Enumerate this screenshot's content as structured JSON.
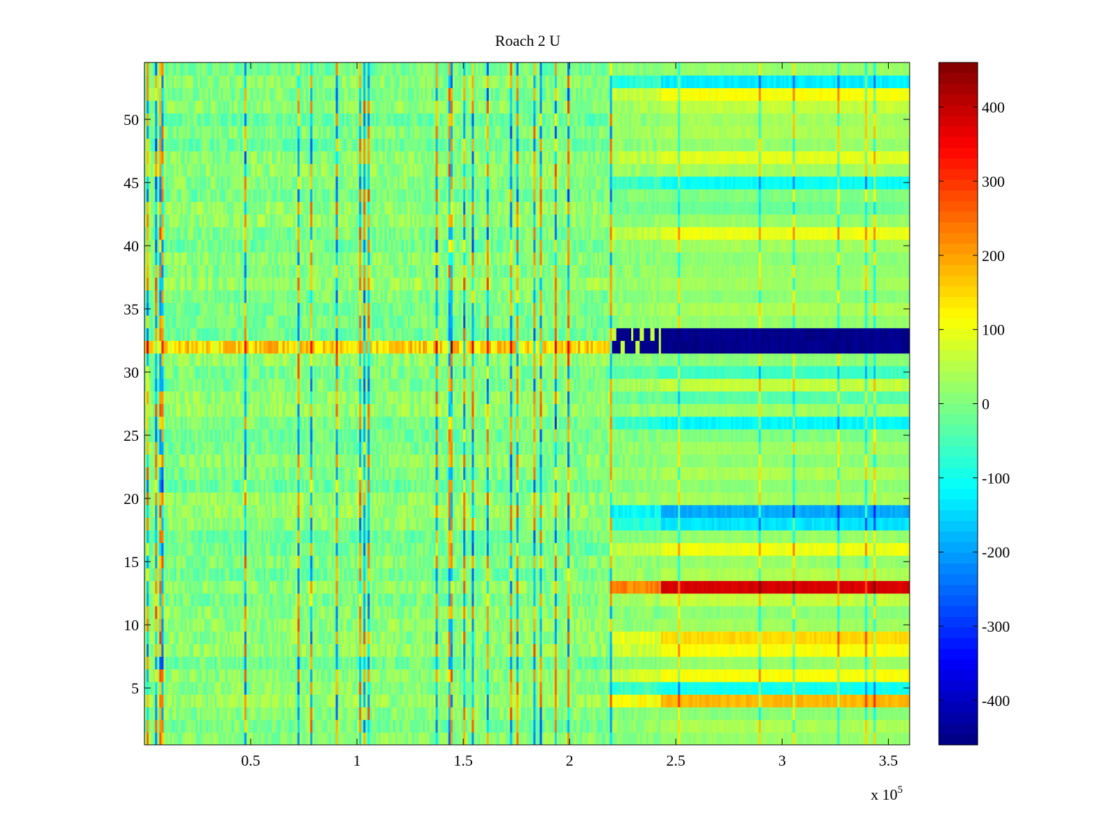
{
  "chart_data": {
    "type": "heatmap",
    "title": "Roach 2 U",
    "xlabel": "",
    "ylabel": "",
    "x_exponent_label": "x 10",
    "x_exponent_power": "5",
    "xlim": [
      0,
      3.6
    ],
    "ylim": [
      0.5,
      54.5
    ],
    "rows": 54,
    "columns": 360,
    "x_ticks": [
      0.5,
      1,
      1.5,
      2,
      2.5,
      3,
      3.5
    ],
    "x_tick_labels": [
      "0.5",
      "1",
      "1.5",
      "2",
      "2.5",
      "3",
      "3.5"
    ],
    "y_ticks": [
      5,
      10,
      15,
      20,
      25,
      30,
      35,
      40,
      45,
      50
    ],
    "y_tick_labels": [
      "5",
      "10",
      "15",
      "20",
      "25",
      "30",
      "35",
      "40",
      "45",
      "50"
    ],
    "colormap": "jet",
    "clim": [
      -460,
      460
    ],
    "colorbar_ticks": [
      400,
      300,
      200,
      100,
      0,
      -100,
      -200,
      -300,
      -400
    ],
    "colorbar_tick_labels": [
      "400",
      "300",
      "200",
      "100",
      "0",
      "-100",
      "-200",
      "-300",
      "-400"
    ],
    "regime_change_x": 2.43,
    "row_levels_left": {
      "32": 120
    },
    "row_levels_right": {
      "1": 20,
      "2": 40,
      "3": 10,
      "4": 180,
      "5": -100,
      "6": 110,
      "7": 20,
      "8": 110,
      "9": 150,
      "10": 30,
      "11": 10,
      "12": 60,
      "13": 380,
      "14": 40,
      "15": 20,
      "16": 100,
      "17": 20,
      "18": -140,
      "19": -190,
      "20": 30,
      "21": 10,
      "22": 40,
      "23": 10,
      "24": 30,
      "25": 0,
      "26": -120,
      "27": 30,
      "28": -40,
      "29": 60,
      "30": -60,
      "31": 10,
      "32": -450,
      "33": -450,
      "34": 20,
      "35": 40,
      "36": 10,
      "37": 30,
      "38": 20,
      "39": 10,
      "40": 30,
      "41": 100,
      "42": 20,
      "43": -20,
      "44": 0,
      "45": -110,
      "46": 30,
      "47": 90,
      "48": 20,
      "49": 40,
      "50": 30,
      "51": 60,
      "52": 110,
      "53": -130,
      "54": 20
    }
  }
}
